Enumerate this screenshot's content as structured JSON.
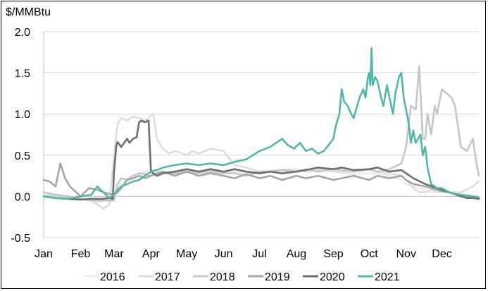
{
  "chart_data": {
    "type": "line",
    "title": "",
    "ylabel": "$/MMBtu",
    "xlabel": "",
    "ylim": [
      -0.5,
      2.0
    ],
    "yticks": [
      "2.0",
      "1.5",
      "1.0",
      "0.5",
      "0.0",
      "-0.5"
    ],
    "ytick_values": [
      2.0,
      1.5,
      1.0,
      0.5,
      0.0,
      -0.5
    ],
    "xlim": [
      0,
      365
    ],
    "categories": [
      "Jan",
      "Feb",
      "Mar",
      "Apr",
      "May",
      "Jun",
      "Jul",
      "Aug",
      "Sep",
      "Oct",
      "Nov",
      "Dec"
    ],
    "category_days": [
      0,
      31,
      59,
      90,
      120,
      151,
      181,
      212,
      243,
      273,
      304,
      334
    ],
    "grid": "horizontal",
    "legend_position": "bottom",
    "series": [
      {
        "name": "2016",
        "color": "#ececec",
        "x": [
          0,
          10,
          20,
          31,
          40,
          45,
          50,
          55,
          59,
          62,
          65,
          70,
          75,
          80,
          85,
          90,
          100,
          110,
          120,
          130,
          140,
          151,
          160,
          170,
          181,
          190,
          200,
          212,
          220,
          230,
          243,
          250,
          260,
          273,
          280,
          290,
          300,
          304,
          310,
          315,
          320,
          325,
          330,
          334,
          340,
          345,
          350,
          355,
          360,
          365
        ],
        "y": [
          0.0,
          0.02,
          0.01,
          -0.02,
          -0.05,
          -0.08,
          -0.03,
          0.0,
          0.02,
          0.08,
          0.15,
          0.22,
          0.25,
          0.28,
          0.3,
          0.32,
          0.3,
          0.28,
          0.33,
          0.3,
          0.32,
          0.28,
          0.3,
          0.28,
          0.3,
          0.32,
          0.33,
          0.3,
          0.32,
          0.33,
          0.3,
          0.28,
          0.27,
          0.28,
          0.28,
          0.25,
          0.2,
          0.15,
          0.12,
          0.1,
          0.08,
          0.05,
          0.05,
          0.06,
          0.05,
          0.03,
          0.03,
          0.02,
          0.01,
          0.0
        ]
      },
      {
        "name": "2017",
        "color": "#dddddd",
        "x": [
          0,
          10,
          20,
          31,
          40,
          45,
          50,
          55,
          59,
          62,
          65,
          70,
          75,
          80,
          85,
          90,
          92,
          95,
          100,
          105,
          110,
          115,
          120,
          125,
          130,
          140,
          151,
          160,
          170,
          181,
          190,
          200,
          212,
          220,
          230,
          243,
          250,
          260,
          273,
          280,
          290,
          300,
          304,
          310,
          315,
          320,
          325,
          330,
          334,
          340,
          350,
          360,
          365
        ],
        "y": [
          0.02,
          0.0,
          -0.02,
          -0.03,
          -0.05,
          -0.1,
          -0.15,
          -0.1,
          0.5,
          0.88,
          0.95,
          0.92,
          0.97,
          0.95,
          0.92,
          0.98,
          1.0,
          0.7,
          0.58,
          0.52,
          0.55,
          0.53,
          0.5,
          0.55,
          0.52,
          0.58,
          0.55,
          0.38,
          0.35,
          0.3,
          0.3,
          0.32,
          0.33,
          0.3,
          0.32,
          0.3,
          0.3,
          0.3,
          0.32,
          0.3,
          0.28,
          0.25,
          0.2,
          0.1,
          0.05,
          0.05,
          0.08,
          0.05,
          0.06,
          0.05,
          0.05,
          0.12,
          0.18
        ]
      },
      {
        "name": "2018",
        "color": "#c6c6c6",
        "x": [
          0,
          10,
          20,
          31,
          40,
          50,
          59,
          62,
          65,
          70,
          75,
          80,
          85,
          90,
          95,
          100,
          110,
          120,
          130,
          140,
          151,
          160,
          170,
          181,
          190,
          200,
          212,
          220,
          230,
          243,
          250,
          260,
          273,
          280,
          290,
          300,
          304,
          308,
          312,
          315,
          318,
          320,
          322,
          325,
          328,
          330,
          334,
          338,
          342,
          345,
          350,
          355,
          360,
          363,
          365
        ],
        "y": [
          0.05,
          0.02,
          0.0,
          -0.03,
          -0.05,
          -0.05,
          -0.05,
          0.15,
          0.22,
          0.2,
          0.25,
          0.28,
          0.27,
          0.25,
          0.28,
          0.3,
          0.28,
          0.3,
          0.28,
          0.3,
          0.28,
          0.28,
          0.25,
          0.3,
          0.3,
          0.32,
          0.3,
          0.33,
          0.3,
          0.33,
          0.32,
          0.3,
          0.33,
          0.3,
          0.33,
          0.4,
          0.6,
          1.1,
          1.05,
          1.58,
          0.7,
          0.7,
          1.0,
          0.75,
          1.1,
          1.0,
          1.3,
          1.25,
          1.2,
          1.1,
          0.6,
          0.55,
          0.7,
          0.4,
          0.25
        ]
      },
      {
        "name": "2019",
        "color": "#a5a5a5",
        "x": [
          0,
          5,
          10,
          14,
          18,
          22,
          25,
          31,
          38,
          45,
          50,
          55,
          59,
          62,
          65,
          70,
          75,
          80,
          85,
          90,
          95,
          100,
          110,
          120,
          130,
          140,
          151,
          160,
          170,
          181,
          190,
          200,
          212,
          220,
          230,
          243,
          250,
          260,
          273,
          280,
          290,
          300,
          304,
          310,
          320,
          325,
          330,
          334,
          340,
          345,
          350,
          355,
          360,
          365
        ],
        "y": [
          0.2,
          0.18,
          0.12,
          0.4,
          0.22,
          0.12,
          0.08,
          0.0,
          0.1,
          0.08,
          0.05,
          0.03,
          0.02,
          0.05,
          0.1,
          0.2,
          0.22,
          0.25,
          0.22,
          0.25,
          0.28,
          0.3,
          0.25,
          0.3,
          0.25,
          0.28,
          0.25,
          0.22,
          0.27,
          0.22,
          0.25,
          0.2,
          0.25,
          0.22,
          0.25,
          0.2,
          0.22,
          0.25,
          0.2,
          0.25,
          0.22,
          0.25,
          0.2,
          0.15,
          0.12,
          0.1,
          0.08,
          0.06,
          0.05,
          0.03,
          0.02,
          0.0,
          -0.02,
          -0.03
        ]
      },
      {
        "name": "2020",
        "color": "#6e6e6e",
        "x": [
          0,
          10,
          20,
          31,
          40,
          50,
          55,
          58,
          59,
          61,
          62,
          65,
          70,
          72,
          75,
          78,
          80,
          82,
          85,
          88,
          90,
          95,
          100,
          110,
          120,
          130,
          140,
          151,
          160,
          170,
          181,
          190,
          200,
          212,
          220,
          230,
          243,
          250,
          260,
          273,
          280,
          290,
          300,
          304,
          310,
          320,
          330,
          340,
          350,
          355,
          360,
          365
        ],
        "y": [
          0.0,
          -0.02,
          -0.03,
          -0.04,
          -0.03,
          -0.03,
          -0.02,
          -0.03,
          0.3,
          0.62,
          0.66,
          0.6,
          0.7,
          0.65,
          0.7,
          0.72,
          0.9,
          0.92,
          0.9,
          0.92,
          0.3,
          0.25,
          0.28,
          0.3,
          0.33,
          0.3,
          0.33,
          0.3,
          0.33,
          0.3,
          0.28,
          0.3,
          0.28,
          0.3,
          0.32,
          0.35,
          0.33,
          0.35,
          0.32,
          0.33,
          0.35,
          0.3,
          0.32,
          0.28,
          0.22,
          0.15,
          0.1,
          0.05,
          0.0,
          -0.02,
          -0.02,
          -0.03
        ]
      },
      {
        "name": "2021",
        "color": "#4fb8a8",
        "x": [
          0,
          10,
          20,
          31,
          40,
          45,
          50,
          55,
          59,
          62,
          65,
          70,
          75,
          80,
          85,
          90,
          95,
          100,
          110,
          120,
          130,
          140,
          151,
          160,
          170,
          181,
          190,
          200,
          205,
          210,
          215,
          220,
          225,
          230,
          235,
          243,
          245,
          248,
          250,
          252,
          255,
          258,
          260,
          263,
          265,
          268,
          270,
          272,
          273,
          274,
          275,
          276,
          278,
          280,
          283,
          285,
          288,
          290,
          293,
          295,
          298,
          300,
          302,
          304,
          306,
          308,
          310,
          312,
          314,
          316,
          318,
          320,
          322,
          325,
          328,
          330,
          334,
          340,
          345,
          350,
          355,
          360,
          365
        ],
        "y": [
          0.0,
          -0.02,
          -0.03,
          0.0,
          0.02,
          0.12,
          0.05,
          -0.02,
          0.02,
          0.08,
          0.12,
          0.15,
          0.18,
          0.2,
          0.25,
          0.3,
          0.32,
          0.35,
          0.38,
          0.4,
          0.38,
          0.4,
          0.38,
          0.42,
          0.45,
          0.55,
          0.6,
          0.7,
          0.62,
          0.58,
          0.65,
          0.55,
          0.58,
          0.52,
          0.55,
          0.7,
          0.85,
          1.0,
          1.3,
          1.15,
          1.1,
          1.0,
          0.95,
          1.1,
          1.2,
          1.3,
          1.2,
          1.45,
          1.5,
          1.35,
          1.8,
          1.35,
          1.45,
          1.4,
          1.2,
          1.1,
          1.35,
          1.2,
          1.0,
          1.25,
          1.45,
          1.5,
          1.2,
          1.05,
          0.9,
          0.65,
          0.8,
          0.65,
          0.7,
          0.75,
          0.5,
          0.6,
          0.35,
          0.15,
          0.12,
          0.1,
          0.1,
          0.05,
          0.03,
          0.02,
          0.01,
          0.0,
          -0.01
        ]
      }
    ]
  }
}
